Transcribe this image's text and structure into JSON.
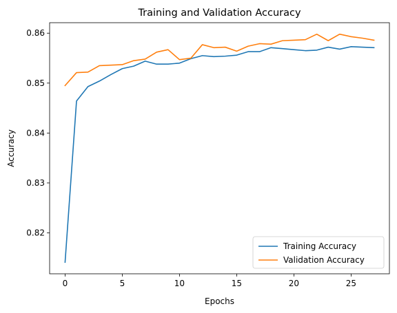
{
  "chart_data": {
    "type": "line",
    "title": "Training and Validation Accuracy",
    "xlabel": "Epochs",
    "ylabel": "Accuracy",
    "xlim": [
      -1.35,
      28.35
    ],
    "ylim": [
      0.8118,
      0.8621
    ],
    "x_ticks": [
      0,
      5,
      10,
      15,
      20,
      25
    ],
    "x_tick_labels": [
      "0",
      "5",
      "10",
      "15",
      "20",
      "25"
    ],
    "y_ticks": [
      0.82,
      0.83,
      0.84,
      0.85,
      0.86
    ],
    "y_tick_labels": [
      "0.82",
      "0.83",
      "0.84",
      "0.85",
      "0.86"
    ],
    "grid": false,
    "legend_position": "bottom-right",
    "x": [
      0,
      1,
      2,
      3,
      4,
      5,
      6,
      7,
      8,
      9,
      10,
      11,
      12,
      13,
      14,
      15,
      16,
      17,
      18,
      19,
      20,
      21,
      22,
      23,
      24,
      25,
      26,
      27
    ],
    "series": [
      {
        "name": "Training Accuracy",
        "color": "#1f77b4",
        "values": [
          0.8141,
          0.8464,
          0.8493,
          0.8504,
          0.8517,
          0.8529,
          0.8534,
          0.8544,
          0.8538,
          0.8538,
          0.854,
          0.8549,
          0.8555,
          0.8553,
          0.8554,
          0.8556,
          0.8563,
          0.8563,
          0.8571,
          0.8569,
          0.8567,
          0.8565,
          0.8566,
          0.8572,
          0.8568,
          0.8573,
          0.8572,
          0.8571
        ]
      },
      {
        "name": "Validation Accuracy",
        "color": "#ff7f0e",
        "values": [
          0.8495,
          0.8521,
          0.8522,
          0.8535,
          0.8536,
          0.8537,
          0.8545,
          0.8548,
          0.8562,
          0.8567,
          0.8547,
          0.855,
          0.8577,
          0.8571,
          0.8572,
          0.8564,
          0.8574,
          0.8579,
          0.8578,
          0.8585,
          0.8586,
          0.8587,
          0.8598,
          0.8585,
          0.8598,
          0.8593,
          0.859,
          0.8586
        ]
      }
    ]
  }
}
